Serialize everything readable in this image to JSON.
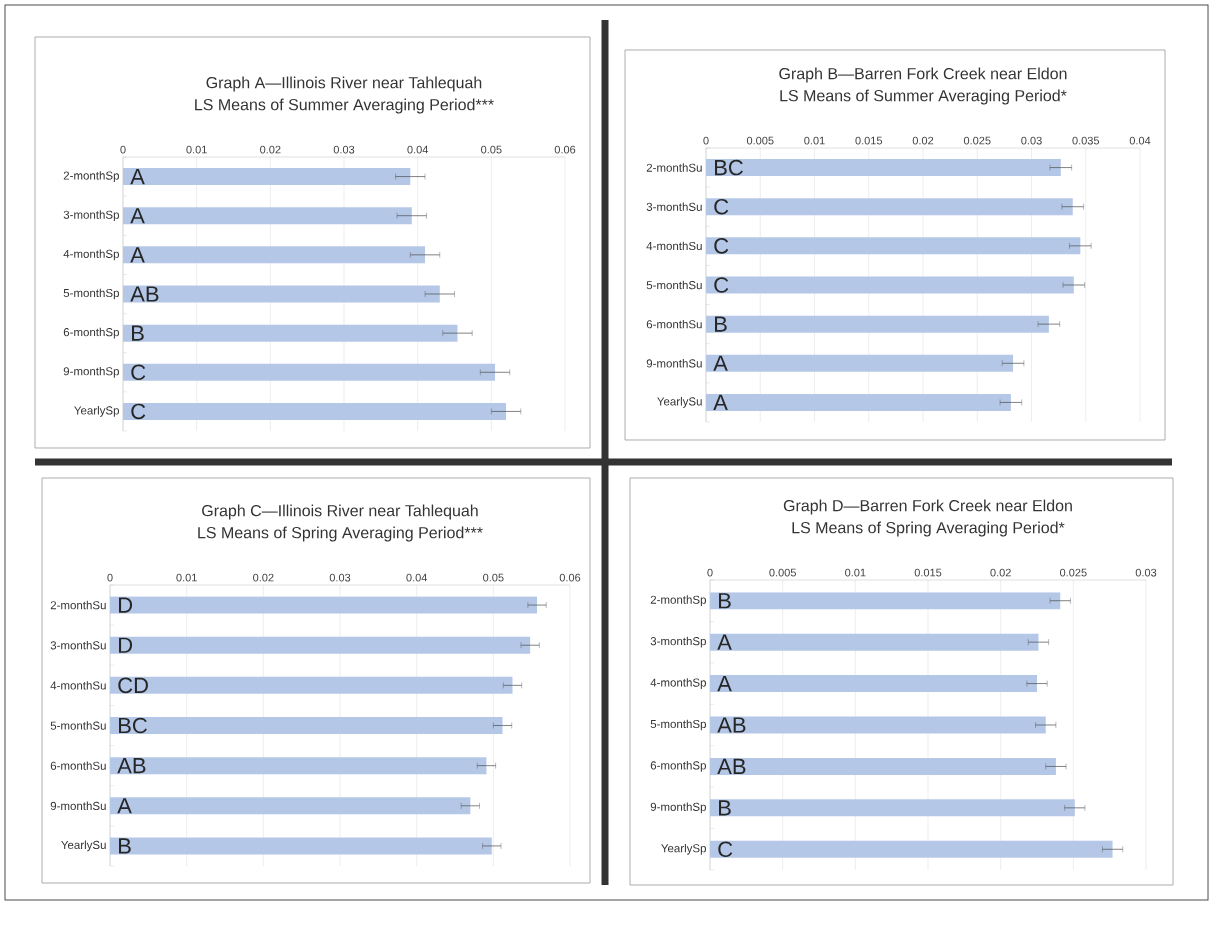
{
  "chart_data": [
    {
      "type": "bar",
      "orientation": "horizontal",
      "title": "Graph A—Illinois River near Tahlequah",
      "subtitle": "LS Means of Summer Averaging Period***",
      "categories": [
        "2-monthSp",
        "3-monthSp",
        "4-monthSp",
        "5-monthSp",
        "6-monthSp",
        "9-monthSp",
        "YearlySp"
      ],
      "values": [
        0.039,
        0.0392,
        0.041,
        0.043,
        0.0454,
        0.0505,
        0.052
      ],
      "errors": [
        0.002,
        0.002,
        0.002,
        0.002,
        0.002,
        0.002,
        0.002
      ],
      "color": "#b4c7e7",
      "xlim": [
        0,
        0.06
      ],
      "xticks": [
        0,
        0.01,
        0.02,
        0.03,
        0.04,
        0.05,
        0.06
      ],
      "grid": "x",
      "annotations": [
        "A",
        "A",
        "A",
        "AB",
        "B",
        "C",
        "C"
      ]
    },
    {
      "type": "bar",
      "orientation": "horizontal",
      "title": "Graph B—Barren Fork Creek near Eldon",
      "subtitle": "LS Means of Summer Averaging Period*",
      "categories": [
        "2-monthSu",
        "3-monthSu",
        "4-monthSu",
        "5-monthSu",
        "6-monthSu",
        "9-monthSu",
        "YearlySu"
      ],
      "values": [
        0.0327,
        0.0338,
        0.0345,
        0.0339,
        0.0316,
        0.0283,
        0.0281
      ],
      "errors": [
        0.001,
        0.001,
        0.001,
        0.001,
        0.001,
        0.001,
        0.001
      ],
      "color": "#b4c7e7",
      "xlim": [
        0,
        0.04
      ],
      "xticks": [
        0,
        0.005,
        0.01,
        0.015,
        0.02,
        0.025,
        0.03,
        0.035,
        0.04
      ],
      "grid": "x",
      "annotations": [
        "BC",
        "C",
        "C",
        "C",
        "B",
        "A",
        "A"
      ]
    },
    {
      "type": "bar",
      "orientation": "horizontal",
      "title": "Graph C—Illinois River near Tahlequah",
      "subtitle": "LS Means of Spring Averaging Period***",
      "categories": [
        "2-monthSu",
        "3-monthSu",
        "4-monthSu",
        "5-monthSu",
        "6-monthSu",
        "9-monthSu",
        "YearlySu"
      ],
      "values": [
        0.0557,
        0.0548,
        0.0525,
        0.0512,
        0.0491,
        0.047,
        0.0498
      ],
      "errors": [
        0.0012,
        0.0012,
        0.0012,
        0.0012,
        0.0012,
        0.0012,
        0.0012
      ],
      "color": "#b4c7e7",
      "xlim": [
        0,
        0.06
      ],
      "xticks": [
        0,
        0.01,
        0.02,
        0.03,
        0.04,
        0.05,
        0.06
      ],
      "grid": "x",
      "annotations": [
        "D",
        "D",
        "CD",
        "BC",
        "AB",
        "A",
        "B"
      ]
    },
    {
      "type": "bar",
      "orientation": "horizontal",
      "title": "Graph D—Barren Fork Creek near Eldon",
      "subtitle": "LS Means of Spring Averaging Period*",
      "categories": [
        "2-monthSp",
        "3-monthSp",
        "4-monthSp",
        "5-monthSp",
        "6-monthSp",
        "9-monthSp",
        "YearlySp"
      ],
      "values": [
        0.0241,
        0.0226,
        0.0225,
        0.0231,
        0.0238,
        0.0251,
        0.0277
      ],
      "errors": [
        0.0007,
        0.0007,
        0.0007,
        0.0007,
        0.0007,
        0.0007,
        0.0007
      ],
      "color": "#b4c7e7",
      "xlim": [
        0,
        0.03
      ],
      "xticks": [
        0,
        0.005,
        0.01,
        0.015,
        0.02,
        0.025,
        0.03
      ],
      "grid": "x",
      "annotations": [
        "B",
        "A",
        "A",
        "AB",
        "AB",
        "B",
        "C"
      ]
    }
  ]
}
